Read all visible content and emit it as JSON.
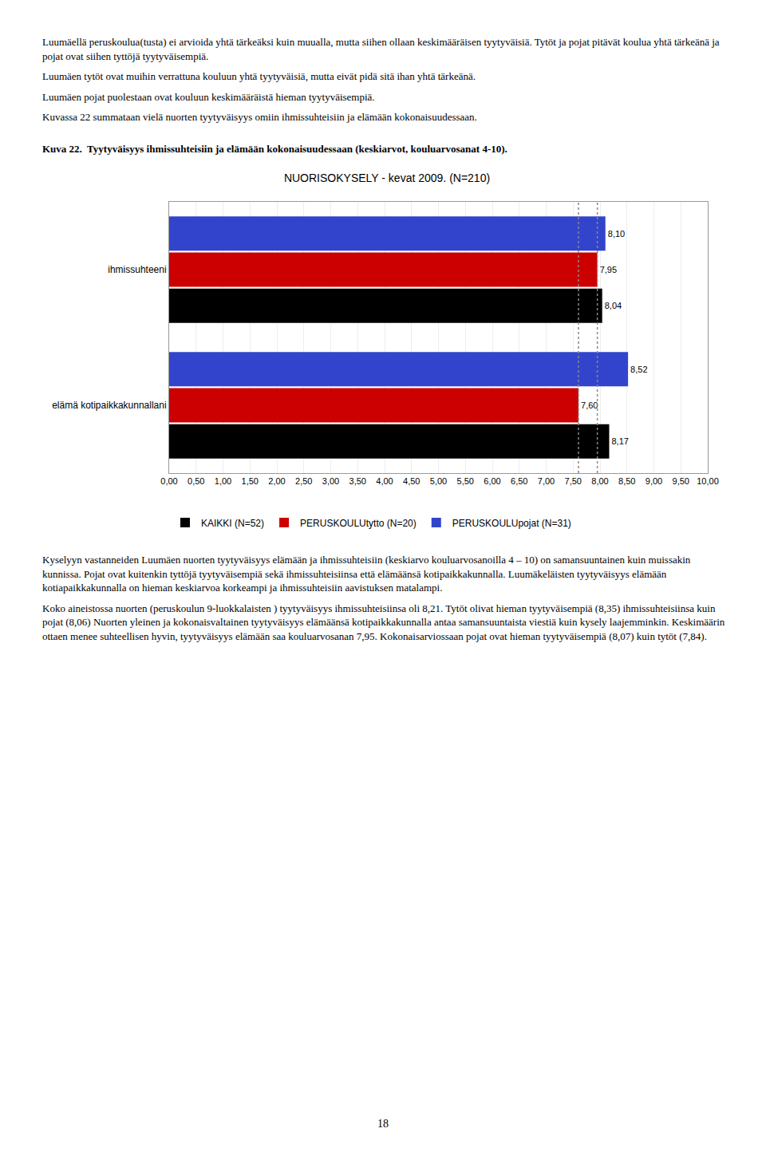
{
  "text_above": [
    "Luumäellä peruskoulua(tusta) ei arvioida yhtä tärkeäksi kuin muualla, mutta siihen ollaan keskimääräisen tyytyväisiä. Tytöt ja pojat pitävät koulua yhtä tärkeänä ja pojat ovat siihen tyttöjä tyytyväisempiä.",
    "Luumäen tytöt ovat muihin verrattuna kouluun yhtä tyytyväisiä, mutta eivät pidä sitä ihan yhtä tärkeänä.",
    "Luumäen pojat puolestaan ovat kouluun keskimääräistä hieman tyytyväisempiä.",
    "Kuvassa 22 summataan vielä nuorten tyytyväisyys omiin ihmissuhteisiin ja elämään kokonaisuudessaan."
  ],
  "caption": "Kuva 22.  Tyytyväisyys ihmissuhteisiin ja elämään kokonaisuudessaan (keskiarvot, kouluarvosanat 4-10).",
  "chart_data": {
    "type": "bar",
    "orientation": "horizontal",
    "title": "NUORISOKYSELY - kevat 2009. (N=210)",
    "categories": [
      "ihmissuhteeni",
      "elämä kotipaikkakunnallani"
    ],
    "series": [
      {
        "name": "KAIKKI (N=52)",
        "color": "#000000",
        "values": [
          8.04,
          8.17
        ],
        "value_labels": [
          "8,04",
          "8,17"
        ]
      },
      {
        "name": "PERUSKOULUtytto (N=20)",
        "color": "#cc0000",
        "values": [
          7.95,
          7.6
        ],
        "value_labels": [
          "7,95",
          "7,60"
        ]
      },
      {
        "name": "PERUSKOULUpojat (N=31)",
        "color": "#3344cc",
        "values": [
          8.1,
          8.52
        ],
        "value_labels": [
          "8,10",
          "8,52"
        ]
      }
    ],
    "reference_lines": [
      7.95,
      7.6
    ],
    "xlim": [
      0,
      10
    ],
    "xticks": [
      {
        "value": 0.0,
        "label": "0,00"
      },
      {
        "value": 0.5,
        "label": "0,50"
      },
      {
        "value": 1.0,
        "label": "1,00"
      },
      {
        "value": 1.5,
        "label": "1,50"
      },
      {
        "value": 2.0,
        "label": "2,00"
      },
      {
        "value": 2.5,
        "label": "2,50"
      },
      {
        "value": 3.0,
        "label": "3,00"
      },
      {
        "value": 3.5,
        "label": "3,50"
      },
      {
        "value": 4.0,
        "label": "4,00"
      },
      {
        "value": 4.5,
        "label": "4,50"
      },
      {
        "value": 5.0,
        "label": "5,00"
      },
      {
        "value": 5.5,
        "label": "5,50"
      },
      {
        "value": 6.0,
        "label": "6,00"
      },
      {
        "value": 6.5,
        "label": "6,50"
      },
      {
        "value": 7.0,
        "label": "7,00"
      },
      {
        "value": 7.5,
        "label": "7,50"
      },
      {
        "value": 8.0,
        "label": "8,00"
      },
      {
        "value": 8.5,
        "label": "8,50"
      },
      {
        "value": 9.0,
        "label": "9,00"
      },
      {
        "value": 9.5,
        "label": "9,50"
      },
      {
        "value": 10.0,
        "label": "10,00"
      }
    ],
    "grid": true,
    "data_labels": true,
    "legend": "bottom"
  },
  "text_below": [
    "Kyselyyn vastanneiden Luumäen nuorten tyytyväisyys elämään ja ihmissuhteisiin (keskiarvo kouluarvosanoilla 4 – 10) on samansuuntainen kuin muissakin kunnissa. Pojat ovat kuitenkin tyttöjä tyytyväisempiä sekä ihmissuhteisiinsa että elämäänsä kotipaikkakunnalla. Luumäkeläisten tyytyväisyys elämään kotiapaikkakunnalla on hieman keskiarvoa korkeampi ja ihmissuhteisiin aavistuksen matalampi.",
    "Koko aineistossa nuorten (peruskoulun 9-luokkalaisten ) tyytyväisyys ihmissuhteisiinsa oli 8,21. Tytöt olivat hieman tyytyväisempiä (8,35) ihmissuhteisiinsa kuin pojat (8,06) Nuorten yleinen ja kokonaisvaltainen tyytyväisyys elämäänsä kotipaikkakunnalla antaa samansuuntaista viestiä kuin kysely laajemminkin. Keskimäärin ottaen menee suhteellisen hyvin, tyytyväisyys elämään saa kouluarvosanan 7,95. Kokonaisarviossaan pojat ovat hieman tyytyväisempiä (8,07) kuin tytöt (7,84)."
  ],
  "page_number": 18
}
